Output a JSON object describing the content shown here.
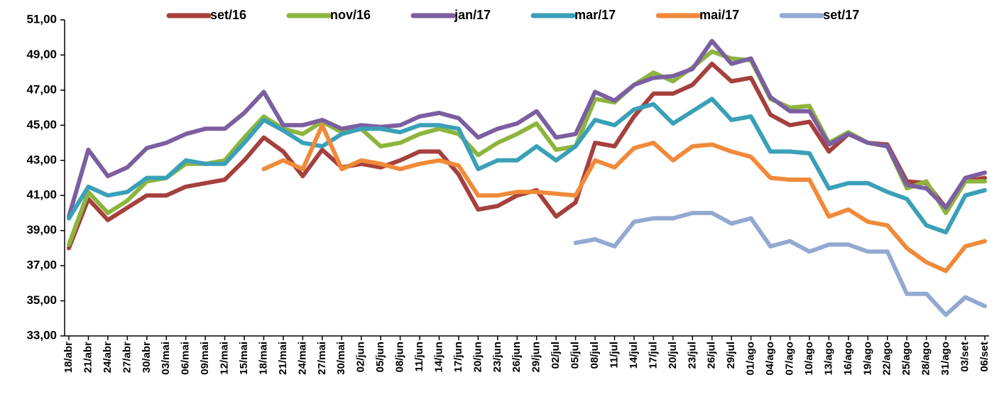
{
  "chart_data": {
    "type": "line",
    "categories": [
      "18/abr",
      "21/abr",
      "24/abr",
      "27/abr",
      "30/abr",
      "03/mai",
      "06/mai",
      "09/mai",
      "12/mai",
      "15/mai",
      "18/mai",
      "21/mai",
      "24/mai",
      "27/mai",
      "30/mai",
      "02/jun",
      "05/jun",
      "08/jun",
      "11/jun",
      "14/jun",
      "17/jun",
      "20/jun",
      "23/jun",
      "26/jun",
      "29/jun",
      "02/jul",
      "05/jul",
      "08/jul",
      "11/jul",
      "14/jul",
      "17/jul",
      "20/jul",
      "23/jul",
      "26/jul",
      "29/jul",
      "01/ago",
      "04/ago",
      "07/ago",
      "10/ago",
      "13/ago",
      "16/ago",
      "19/ago",
      "22/ago",
      "25/ago",
      "28/ago",
      "31/ago",
      "03/set",
      "06/set"
    ],
    "ylim": [
      33,
      51
    ],
    "yticks": [
      {
        "value": 33,
        "label": "33,00"
      },
      {
        "value": 35,
        "label": "35,00"
      },
      {
        "value": 37,
        "label": "37,00"
      },
      {
        "value": 39,
        "label": "39,00"
      },
      {
        "value": 41,
        "label": "41,00"
      },
      {
        "value": 43,
        "label": "43,00"
      },
      {
        "value": 45,
        "label": "45,00"
      },
      {
        "value": 47,
        "label": "47,00"
      },
      {
        "value": 49,
        "label": "49,00"
      },
      {
        "value": 51,
        "label": "51,00"
      }
    ],
    "grid": false,
    "legend": "top",
    "series": [
      {
        "name": "set/16",
        "color": "#a5403d",
        "values": [
          38.0,
          40.8,
          39.6,
          40.3,
          41.0,
          41.0,
          41.5,
          41.7,
          41.9,
          43.0,
          44.3,
          43.5,
          42.1,
          43.6,
          42.6,
          42.8,
          42.6,
          43.0,
          43.5,
          43.5,
          42.2,
          40.2,
          40.4,
          41.0,
          41.3,
          39.8,
          40.6,
          44.0,
          43.8,
          45.5,
          46.8,
          46.8,
          47.3,
          48.5,
          47.5,
          47.7,
          45.6,
          45.0,
          45.2,
          43.5,
          44.5,
          44.0,
          43.9,
          41.8,
          41.7,
          40.3,
          41.8,
          42.0
        ]
      },
      {
        "name": "nov/16",
        "color": "#8db53e",
        "values": [
          38.2,
          41.2,
          40.0,
          40.7,
          41.8,
          42.0,
          42.8,
          42.8,
          43.0,
          44.3,
          45.5,
          44.8,
          44.5,
          45.2,
          44.6,
          44.8,
          43.8,
          44.0,
          44.5,
          44.8,
          44.5,
          43.3,
          44.0,
          44.5,
          45.1,
          43.6,
          43.8,
          46.5,
          46.3,
          47.3,
          48.0,
          47.5,
          48.3,
          49.2,
          48.8,
          48.7,
          46.5,
          46.0,
          46.1,
          44.0,
          44.6,
          44.0,
          43.8,
          41.4,
          41.8,
          40.0,
          41.8,
          41.8
        ]
      },
      {
        "name": "jan/17",
        "color": "#7b5fa0",
        "values": [
          39.8,
          43.6,
          42.1,
          42.6,
          43.7,
          44.0,
          44.5,
          44.8,
          44.8,
          45.7,
          46.9,
          45.0,
          45.0,
          45.3,
          44.8,
          45.0,
          44.9,
          45.0,
          45.5,
          45.7,
          45.4,
          44.3,
          44.8,
          45.1,
          45.8,
          44.3,
          44.5,
          46.9,
          46.4,
          47.3,
          47.7,
          47.8,
          48.2,
          49.8,
          48.5,
          48.8,
          46.6,
          45.8,
          45.8,
          43.9,
          44.5,
          44.0,
          43.8,
          41.6,
          41.4,
          40.3,
          42.0,
          42.3
        ]
      },
      {
        "name": "mar/17",
        "color": "#3aa0b8",
        "values": [
          39.7,
          41.5,
          41.0,
          41.2,
          42.0,
          42.0,
          43.0,
          42.8,
          42.8,
          44.0,
          45.3,
          44.7,
          44.0,
          43.8,
          44.5,
          44.8,
          44.8,
          44.6,
          45.0,
          45.0,
          44.8,
          42.5,
          43.0,
          43.0,
          43.8,
          43.0,
          43.8,
          45.3,
          45.0,
          45.9,
          46.2,
          45.1,
          45.8,
          46.5,
          45.3,
          45.5,
          43.5,
          43.5,
          43.4,
          41.4,
          41.7,
          41.7,
          41.2,
          40.8,
          39.3,
          38.9,
          41.0,
          41.3
        ]
      },
      {
        "name": "mai/17",
        "color": "#f08a3a",
        "values": [
          null,
          null,
          null,
          null,
          null,
          null,
          null,
          null,
          null,
          null,
          42.5,
          43.0,
          42.5,
          45.0,
          42.5,
          43.0,
          42.8,
          42.5,
          42.8,
          43.0,
          42.7,
          41.0,
          41.0,
          41.2,
          41.2,
          41.1,
          41.0,
          43.0,
          42.6,
          43.7,
          44.0,
          43.0,
          43.8,
          43.9,
          43.5,
          43.2,
          42.0,
          41.9,
          41.9,
          39.8,
          40.2,
          39.5,
          39.3,
          38.0,
          37.2,
          36.7,
          38.1,
          38.4
        ]
      },
      {
        "name": "set/17",
        "color": "#93a9d1",
        "values": [
          null,
          null,
          null,
          null,
          null,
          null,
          null,
          null,
          null,
          null,
          null,
          null,
          null,
          null,
          null,
          null,
          null,
          null,
          null,
          null,
          null,
          null,
          null,
          null,
          null,
          null,
          38.3,
          38.5,
          38.1,
          39.5,
          39.7,
          39.7,
          40.0,
          40.0,
          39.4,
          39.7,
          38.1,
          38.4,
          37.8,
          38.2,
          38.2,
          37.8,
          37.8,
          35.4,
          35.4,
          34.2,
          35.2,
          34.7
        ]
      }
    ]
  }
}
